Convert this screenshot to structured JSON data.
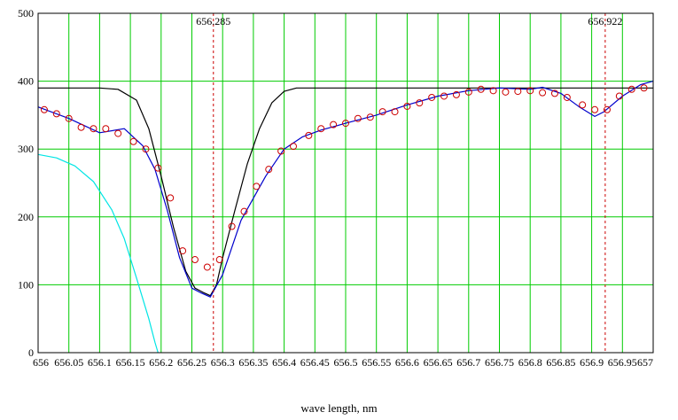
{
  "chart_data": {
    "type": "line",
    "xlabel": "wave length,  nm",
    "ylabel": "",
    "xlim": [
      656,
      657
    ],
    "ylim": [
      0,
      500
    ],
    "grid": true,
    "colors": {
      "grid": "#00cc00",
      "model": "#000000",
      "fit": "#0000cc",
      "background": "#00e5e5",
      "observed": "#cc0000",
      "marker_line": "#cc0000"
    },
    "x_ticks": [
      "656",
      "656.05",
      "656.1",
      "656.15",
      "656.2",
      "656.25",
      "656.3",
      "656.35",
      "656.4",
      "656.45",
      "656.5",
      "656.55",
      "656.6",
      "656.65",
      "656.7",
      "656.75",
      "656.8",
      "656.85",
      "656.9",
      "656.95",
      "657"
    ],
    "y_ticks": [
      "0",
      "100",
      "200",
      "300",
      "400",
      "500"
    ],
    "annotations": [
      {
        "x": 656.285,
        "label": "656.285"
      },
      {
        "x": 656.922,
        "label": "656.922"
      }
    ],
    "series": [
      {
        "style": "line",
        "color": "#000000",
        "x": [
          656.0,
          656.1,
          656.13,
          656.16,
          656.18,
          656.2,
          656.22,
          656.24,
          656.255,
          656.27,
          656.28,
          656.29,
          656.3,
          656.32,
          656.34,
          656.36,
          656.38,
          656.4,
          656.42,
          656.45,
          656.5,
          657.0
        ],
        "y": [
          390,
          390,
          388,
          372,
          330,
          260,
          185,
          120,
          95,
          88,
          84,
          100,
          140,
          210,
          278,
          330,
          368,
          385,
          390,
          390,
          390,
          390
        ]
      },
      {
        "style": "line",
        "color": "#0000cc",
        "x": [
          656.0,
          656.05,
          656.1,
          656.14,
          656.17,
          656.19,
          656.21,
          656.23,
          656.25,
          656.265,
          656.28,
          656.3,
          656.33,
          656.37,
          656.4,
          656.43,
          656.46,
          656.5,
          656.55,
          656.6,
          656.65,
          656.7,
          656.75,
          656.8,
          656.82,
          656.85,
          656.88,
          656.905,
          656.92,
          656.95,
          656.98,
          657.0
        ],
        "y": [
          362,
          345,
          324,
          330,
          305,
          270,
          210,
          140,
          95,
          88,
          82,
          115,
          195,
          260,
          300,
          318,
          328,
          338,
          350,
          365,
          378,
          386,
          390,
          388,
          391,
          382,
          362,
          348,
          355,
          378,
          395,
          400
        ]
      },
      {
        "style": "line",
        "color": "#00e5e5",
        "x": [
          656.0,
          656.03,
          656.06,
          656.09,
          656.12,
          656.14,
          656.16,
          656.18,
          656.19,
          656.195
        ],
        "y": [
          292,
          287,
          275,
          252,
          210,
          168,
          110,
          50,
          15,
          0
        ]
      },
      {
        "style": "markers",
        "color": "#cc0000",
        "x": [
          656.01,
          656.03,
          656.05,
          656.07,
          656.09,
          656.11,
          656.13,
          656.155,
          656.175,
          656.195,
          656.215,
          656.235,
          656.255,
          656.275,
          656.295,
          656.315,
          656.335,
          656.355,
          656.375,
          656.395,
          656.415,
          656.44,
          656.46,
          656.48,
          656.5,
          656.52,
          656.54,
          656.56,
          656.58,
          656.6,
          656.62,
          656.64,
          656.66,
          656.68,
          656.7,
          656.72,
          656.74,
          656.76,
          656.78,
          656.8,
          656.82,
          656.84,
          656.86,
          656.885,
          656.905,
          656.925,
          656.945,
          656.965,
          656.985
        ],
        "y": [
          358,
          352,
          345,
          332,
          330,
          330,
          323,
          311,
          300,
          272,
          228,
          150,
          137,
          126,
          137,
          186,
          208,
          245,
          270,
          297,
          304,
          320,
          330,
          336,
          338,
          345,
          347,
          355,
          355,
          363,
          368,
          376,
          378,
          380,
          384,
          388,
          386,
          384,
          385,
          386,
          383,
          382,
          376,
          365,
          358,
          358,
          378,
          388,
          390
        ]
      }
    ]
  }
}
